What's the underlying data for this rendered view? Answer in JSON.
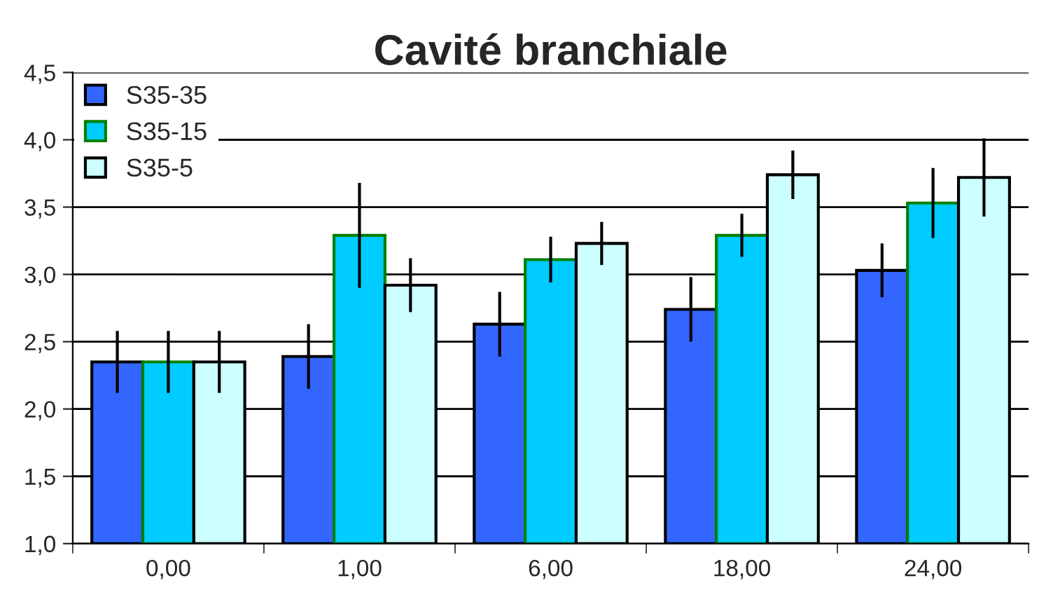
{
  "chart_data": {
    "type": "bar",
    "title": "Cavité branchiale",
    "categories": [
      "0,00",
      "1,00",
      "6,00",
      "18,00",
      "24,00"
    ],
    "series": [
      {
        "name": "S35-35",
        "color": "#3366ff",
        "values": [
          2.35,
          2.39,
          2.63,
          2.74,
          3.03
        ],
        "errors": [
          0.23,
          0.24,
          0.24,
          0.24,
          0.2
        ]
      },
      {
        "name": "S35-15",
        "color": "#00ccff",
        "values": [
          2.35,
          3.29,
          3.11,
          3.29,
          3.53
        ],
        "errors": [
          0.23,
          0.39,
          0.17,
          0.16,
          0.26
        ]
      },
      {
        "name": "S35-5",
        "color": "#ccffff",
        "values": [
          2.35,
          2.92,
          3.23,
          3.74,
          3.72
        ],
        "errors": [
          0.23,
          0.2,
          0.16,
          0.18,
          0.29
        ]
      }
    ],
    "ylim": [
      1.0,
      4.5
    ],
    "yticks": [
      {
        "value": 1.0,
        "label": "1,0"
      },
      {
        "value": 1.5,
        "label": "1,5"
      },
      {
        "value": 2.0,
        "label": "2,0"
      },
      {
        "value": 2.5,
        "label": "2,5"
      },
      {
        "value": 3.0,
        "label": "3,0"
      },
      {
        "value": 3.5,
        "label": "3,5"
      },
      {
        "value": 4.0,
        "label": "4,0"
      },
      {
        "value": 4.5,
        "label": "4,5"
      }
    ],
    "grid": "y",
    "legend": "top left"
  }
}
